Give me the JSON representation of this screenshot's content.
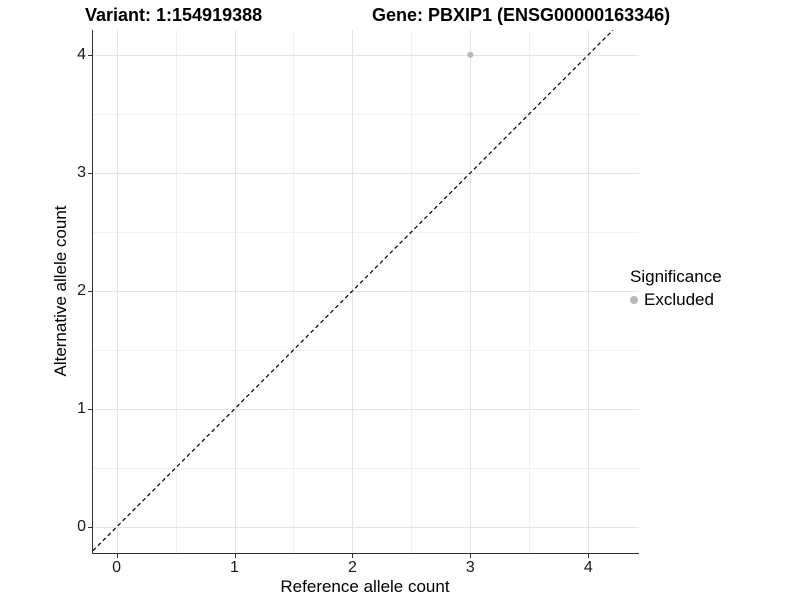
{
  "chart_data": {
    "type": "scatter",
    "title_left": "Variant: 1:154919388",
    "title_right": "Gene: PBXIP1 (ENSG00000163346)",
    "xlabel": "Reference allele count",
    "ylabel": "Alternative allele count",
    "xlim": [
      -0.2,
      4.43
    ],
    "ylim": [
      -0.22,
      4.21
    ],
    "x_ticks": [
      0,
      1,
      2,
      3,
      4
    ],
    "y_ticks": [
      0,
      1,
      2,
      3,
      4
    ],
    "x_minor_ticks": [
      0.5,
      1.5,
      2.5,
      3.5
    ],
    "y_minor_ticks": [
      0.5,
      1.5,
      2.5,
      3.5
    ],
    "grid": "on",
    "points": [
      {
        "x": 3,
        "y": 4,
        "series": "Excluded"
      }
    ],
    "identity_line": {
      "equation": "y = x",
      "style": "dashed",
      "color": "#000000"
    },
    "legend": {
      "title": "Significance",
      "position": "right",
      "items": [
        {
          "label": "Excluded",
          "color": "#b9b9b9"
        }
      ]
    },
    "colors": {
      "background": "#ffffff",
      "grid_major": "#e4e4e4",
      "grid_minor": "#f1f1f1",
      "axis_line": "#2f2f2f",
      "point": "#b9b9b9",
      "text": "#000000"
    }
  }
}
